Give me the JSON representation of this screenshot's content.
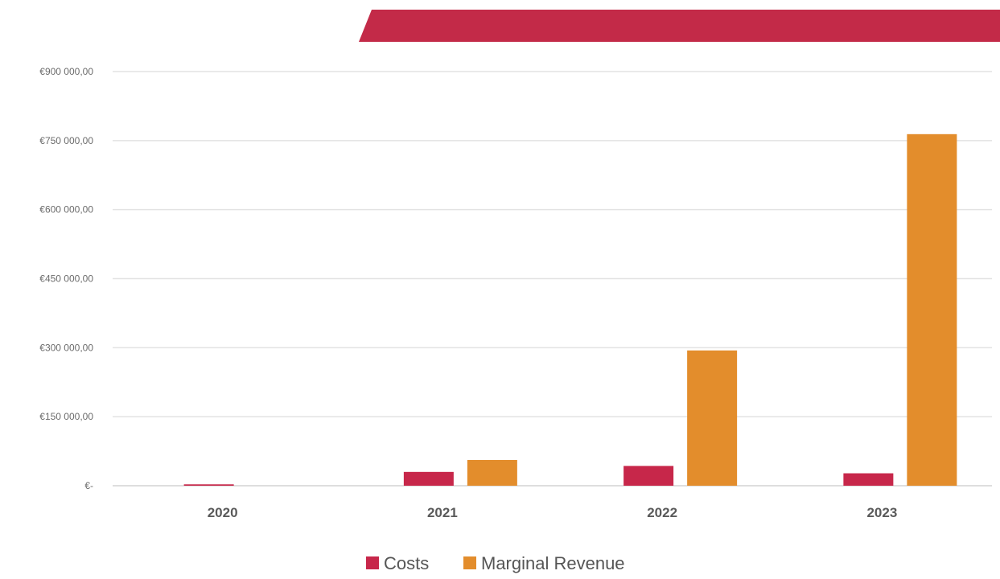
{
  "chart_data": {
    "type": "bar",
    "categories": [
      "2020",
      "2021",
      "2022",
      "2023"
    ],
    "series": [
      {
        "name": "Costs",
        "color": "#c7274a",
        "values": [
          3000,
          30000,
          43000,
          27000
        ]
      },
      {
        "name": "Marginal Revenue",
        "color": "#e38d2c",
        "values": [
          0,
          56000,
          294000,
          764000
        ]
      }
    ],
    "ylim": [
      0,
      900000
    ],
    "yticks": [
      0,
      150000,
      300000,
      450000,
      600000,
      750000,
      900000
    ],
    "ytick_labels": [
      "€-",
      "€150 000,00",
      "€300 000,00",
      "€450 000,00",
      "€600 000,00",
      "€750 000,00",
      "€900 000,00"
    ],
    "grid": true,
    "legend_position": "bottom"
  },
  "decor": {
    "banner_color": "#c32a48"
  }
}
